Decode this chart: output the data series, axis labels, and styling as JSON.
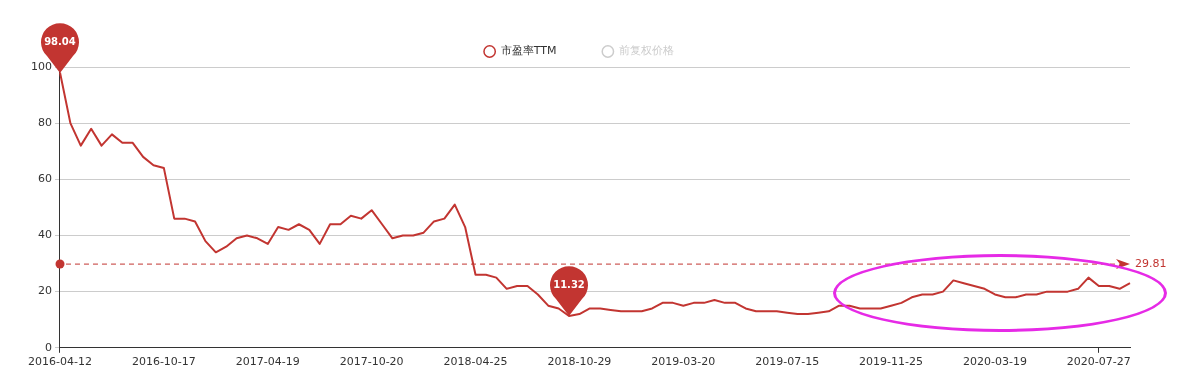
{
  "chart_data": {
    "type": "line",
    "categories": [
      "2016-04-12",
      null,
      null,
      null,
      null,
      null,
      null,
      null,
      null,
      null,
      "2016-10-17",
      null,
      null,
      null,
      null,
      null,
      null,
      null,
      null,
      null,
      "2017-04-19",
      null,
      null,
      null,
      null,
      null,
      null,
      null,
      null,
      null,
      "2017-10-20",
      null,
      null,
      null,
      null,
      null,
      null,
      null,
      null,
      null,
      "2018-04-25",
      null,
      null,
      null,
      null,
      null,
      null,
      null,
      null,
      null,
      "2018-10-29",
      null,
      null,
      null,
      null,
      null,
      null,
      null,
      null,
      null,
      "2019-03-20",
      null,
      null,
      null,
      null,
      null,
      null,
      null,
      null,
      null,
      "2019-07-15",
      null,
      null,
      null,
      null,
      null,
      null,
      null,
      null,
      null,
      "2019-11-25",
      null,
      null,
      null,
      null,
      null,
      null,
      null,
      null,
      null,
      "2020-03-19",
      null,
      null,
      null,
      null,
      null,
      null,
      null,
      null,
      null,
      "2020-07-27",
      null,
      null,
      null
    ],
    "series": [
      {
        "name": "市盈率TTM",
        "color": "#c23531",
        "values": [
          98.04,
          80,
          72,
          78,
          72,
          76,
          73,
          73,
          68,
          65,
          64,
          46,
          46,
          45,
          38,
          34,
          36,
          39,
          40,
          39,
          37,
          43,
          42,
          44,
          42,
          37,
          44,
          44,
          47,
          46,
          49,
          44,
          39,
          40,
          40,
          41,
          45,
          46,
          51,
          43,
          26,
          26,
          25,
          21,
          22,
          22,
          19,
          15,
          14,
          11.32,
          12,
          14,
          14,
          13.5,
          13,
          13,
          13,
          14,
          16,
          16,
          15,
          16,
          16,
          17,
          16,
          16,
          14,
          13,
          13,
          13,
          12.5,
          12,
          12,
          12.5,
          13,
          15,
          15,
          14,
          14,
          14,
          15,
          16,
          18,
          19,
          19,
          20,
          24,
          23,
          22,
          21,
          19,
          18,
          18,
          19,
          19,
          20,
          20,
          20,
          21,
          25,
          22,
          22,
          21,
          23
        ]
      },
      {
        "name": "前复权价格",
        "color": "#cccccc",
        "values": [
          null,
          null,
          null,
          null,
          null,
          null,
          null,
          null,
          null,
          null,
          null,
          null,
          null,
          null,
          null,
          null,
          null,
          null,
          null,
          null,
          null,
          null,
          null,
          null,
          null,
          null,
          null,
          null,
          null,
          null,
          null,
          null,
          null,
          null,
          null,
          null,
          null,
          null,
          null,
          null,
          null,
          null,
          null,
          null,
          null,
          null,
          null,
          null,
          null,
          null,
          null,
          null,
          null,
          null,
          null,
          null,
          null,
          null,
          null,
          null,
          null,
          null,
          null,
          null,
          null,
          null,
          null,
          null,
          null,
          null,
          null,
          null,
          null,
          null,
          null,
          null,
          null,
          null,
          null,
          null,
          null,
          null,
          null,
          null,
          null,
          null,
          null,
          null,
          null,
          null,
          null,
          null,
          null,
          null,
          null,
          null,
          null,
          null,
          null,
          null,
          null,
          null,
          null,
          null
        ]
      }
    ],
    "ylim": [
      0,
      100
    ],
    "yticks": [
      0,
      20,
      40,
      60,
      80,
      100
    ],
    "grid": "y",
    "legend": "top",
    "ref_lines": [
      {
        "axis": "y",
        "value": 29.81,
        "label": "29.81",
        "color": "#c23531",
        "line_style": "dashed"
      }
    ],
    "annotations": [
      {
        "text": "98.04",
        "y": 98.04
      },
      {
        "text": "11.32",
        "y": 11.32
      }
    ]
  }
}
